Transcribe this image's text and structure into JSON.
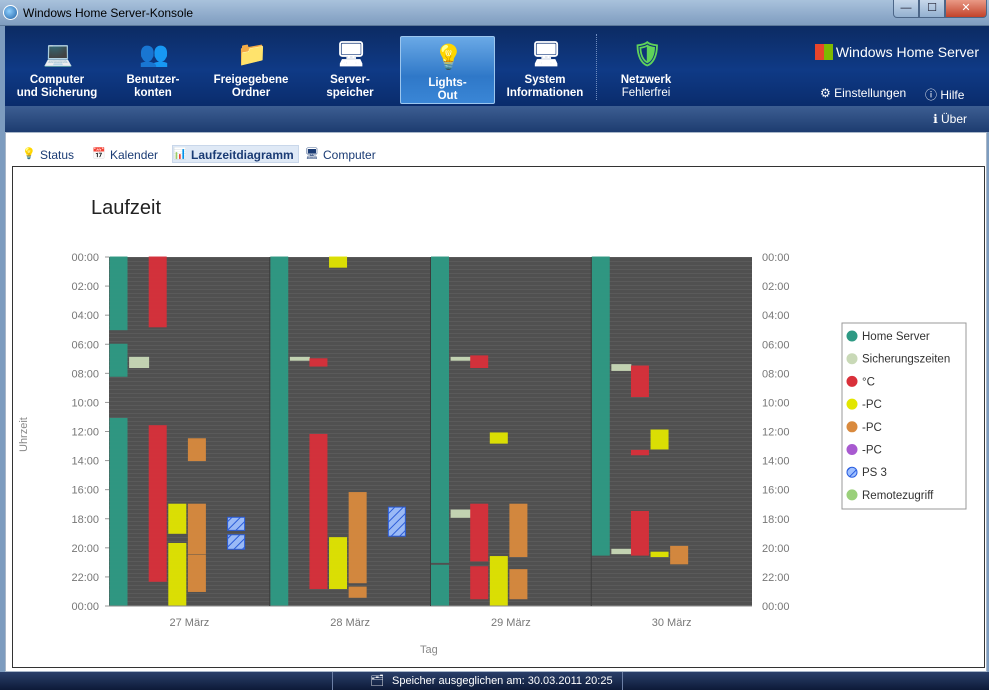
{
  "window": {
    "title": "Windows Home Server-Konsole"
  },
  "nav": {
    "items": [
      {
        "line1": "Computer",
        "line2": "und Sicherung",
        "icon": "computer-backup-icon"
      },
      {
        "line1": "Benutzer-",
        "line2": "konten",
        "icon": "users-icon"
      },
      {
        "line1": "Freigegebene",
        "line2": "Ordner",
        "icon": "folder-icon"
      },
      {
        "line1": "Server-",
        "line2": "speicher",
        "icon": "server-storage-icon"
      },
      {
        "line1": "Lights-",
        "line2": "Out",
        "icon": "lightbulb-icon"
      },
      {
        "line1": "System",
        "line2": "Informationen",
        "icon": "system-info-icon"
      }
    ],
    "network": {
      "line1": "Netzwerk",
      "line2": "Fehlerfrei",
      "icon": "shield-check-icon"
    },
    "brand": "Windows Home Server",
    "settings": "Einstellungen",
    "help": "Hilfe",
    "about": "Über"
  },
  "tabs": [
    {
      "label": "Status",
      "icon": "bulb-icon"
    },
    {
      "label": "Kalender",
      "icon": "calendar-icon"
    },
    {
      "label": "Laufzeitdiagramm",
      "icon": "bar-chart-icon"
    },
    {
      "label": "Computer",
      "icon": "monitor-icon"
    }
  ],
  "status_text": "Speicher ausgeglichen am: 30.03.2011 20:25",
  "chart_data": {
    "type": "bar",
    "title": "Laufzeit",
    "xlabel": "Tag",
    "ylabel": "Uhrzeit",
    "categories": [
      "27 März",
      "28 März",
      "29 März",
      "30 März"
    ],
    "y_ticks": [
      "00:00",
      "02:00",
      "04:00",
      "06:00",
      "08:00",
      "10:00",
      "12:00",
      "14:00",
      "16:00",
      "18:00",
      "20:00",
      "22:00",
      "00:00"
    ],
    "ylim": [
      0,
      24
    ],
    "legend_position": "right",
    "series": [
      {
        "name": "Home Server",
        "color": "#2e9a84",
        "intervals": [
          [
            0,
            0,
            5
          ],
          [
            0,
            6,
            8.2
          ],
          [
            0,
            11.1,
            24
          ],
          [
            1,
            0,
            24
          ],
          [
            2,
            0,
            21
          ],
          [
            2,
            21.2,
            24
          ],
          [
            3,
            0,
            20.5
          ]
        ]
      },
      {
        "name": "Sicherungszeiten",
        "color": "#c9d9b7",
        "intervals": [
          [
            0,
            6.9,
            7.6
          ],
          [
            1,
            6.9,
            7.1
          ],
          [
            2,
            6.9,
            7.1
          ],
          [
            2,
            17.4,
            17.9
          ],
          [
            3,
            7.4,
            7.8
          ],
          [
            3,
            20.1,
            20.4
          ]
        ]
      },
      {
        "name": "°C",
        "color": "#d9303a",
        "intervals": [
          [
            0,
            0,
            4.8
          ],
          [
            0,
            11.6,
            22.3
          ],
          [
            1,
            7,
            7.5
          ],
          [
            1,
            12.2,
            22.8
          ],
          [
            2,
            6.8,
            7.6
          ],
          [
            2,
            17,
            20.9
          ],
          [
            2,
            21.3,
            23.5
          ],
          [
            3,
            7.5,
            9.6
          ],
          [
            3,
            13.3,
            13.6
          ],
          [
            3,
            17.5,
            20.5
          ]
        ]
      },
      {
        "name": "-PC",
        "color": "#e2e600",
        "intervals": [
          [
            0,
            17,
            19
          ],
          [
            0,
            19.7,
            24
          ],
          [
            1,
            0,
            0.7
          ],
          [
            1,
            19.3,
            22.8
          ],
          [
            2,
            12.1,
            12.8
          ],
          [
            2,
            20.6,
            24
          ],
          [
            3,
            11.9,
            13.2
          ],
          [
            3,
            20.3,
            20.6
          ]
        ]
      },
      {
        "name": "-PC",
        "color": "#d98a3e",
        "intervals": [
          [
            0,
            12.5,
            14
          ],
          [
            0,
            17,
            20.4
          ],
          [
            0,
            20.5,
            23
          ],
          [
            1,
            16.2,
            22.4
          ],
          [
            1,
            22.7,
            23.4
          ],
          [
            2,
            17,
            20.6
          ],
          [
            2,
            21.5,
            23.5
          ],
          [
            3,
            19.9,
            21.1
          ]
        ]
      },
      {
        "name": "-PC",
        "color": "#a85ad0",
        "intervals": []
      },
      {
        "name": "PS 3",
        "color": "#2a5ee0",
        "intervals": [
          [
            0,
            17.9,
            18.8
          ],
          [
            0,
            19.1,
            20.1
          ],
          [
            1,
            17.2,
            19.2
          ]
        ]
      },
      {
        "name": "Remotezugriff",
        "color": "#9ad07a",
        "intervals": []
      }
    ],
    "legend": [
      "Home Server",
      "Sicherungszeiten",
      "°C",
      "-PC",
      "-PC",
      "-PC",
      "PS 3",
      "Remotezugriff"
    ]
  }
}
